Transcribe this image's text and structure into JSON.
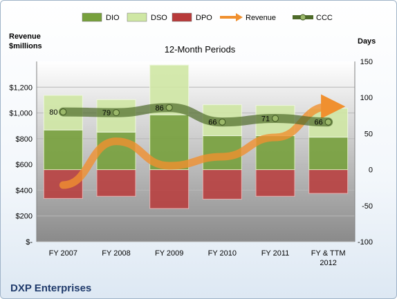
{
  "chart_data": {
    "type": "bar",
    "subtitle": "12-Month Periods",
    "company": "DXP Enterprises",
    "y_left_label": [
      "Revenue",
      "$millions"
    ],
    "y_right_label": "Days",
    "categories": [
      [
        "FY 2007"
      ],
      [
        "FY 2008"
      ],
      [
        "FY 2009"
      ],
      [
        "FY 2010"
      ],
      [
        "FY 2011"
      ],
      [
        "FY & TTM",
        "2012"
      ]
    ],
    "left_ticks": [
      "$-",
      "$200",
      "$400",
      "$600",
      "$800",
      "$1,000",
      "$1,200"
    ],
    "right_ticks": [
      "-100",
      "-50",
      "0",
      "50",
      "100",
      "150"
    ],
    "left_axis": {
      "min": 0,
      "max": 1400,
      "step": 200
    },
    "right_axis": {
      "min": -100,
      "max": 150,
      "step": 50
    },
    "legend": [
      "DIO",
      "DSO",
      "DPO",
      "Revenue",
      "CCC"
    ],
    "legend_position": "top",
    "grid": true,
    "colors": {
      "DIO": "#77a03c",
      "DSO": "#cfe7a4",
      "DPO": "#b83a3a",
      "Revenue": "#f0902f",
      "CCC": "#4e6b2a",
      "plot_bg_top": "#ffffff",
      "plot_bg_bottom": "#8a8a8a"
    },
    "series": [
      {
        "name": "DIO",
        "axis": "right",
        "values": [
          55,
          52,
          76,
          47,
          47,
          45
        ]
      },
      {
        "name": "DSO",
        "axis": "right",
        "values": [
          48,
          45,
          69,
          43,
          42,
          40
        ]
      },
      {
        "name": "DPO",
        "axis": "right",
        "values": [
          -40,
          -37,
          -54,
          -41,
          -37,
          -33
        ]
      },
      {
        "name": "Revenue",
        "axis": "left",
        "values": [
          440,
          780,
          590,
          660,
          810,
          1050
        ]
      },
      {
        "name": "CCC",
        "axis": "right",
        "values": [
          80,
          79,
          86,
          66,
          71,
          66
        ]
      }
    ],
    "ccc_labels": [
      "80",
      "79",
      "86",
      "66",
      "71",
      "66"
    ]
  }
}
